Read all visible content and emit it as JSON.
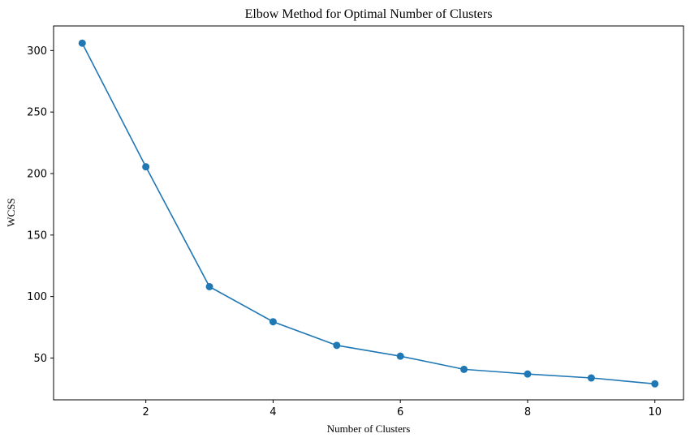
{
  "chart_data": {
    "type": "line",
    "title": "Elbow Method for Optimal Number of Clusters",
    "xlabel": "Number of Clusters",
    "ylabel": "WCSS",
    "xlim": [
      0.55,
      10.45
    ],
    "ylim": [
      16,
      320
    ],
    "xticks": [
      2,
      4,
      6,
      8,
      10
    ],
    "yticks": [
      50,
      100,
      150,
      200,
      250,
      300
    ],
    "grid": false,
    "marker": "circle",
    "color": "#1f77b4",
    "series": [
      {
        "x": [
          1,
          2,
          3,
          4,
          5,
          6,
          7,
          8,
          9,
          10
        ],
        "values": [
          306,
          205.5,
          108,
          79.5,
          60.3,
          51.5,
          40.8,
          37,
          33.8,
          29
        ]
      }
    ]
  }
}
